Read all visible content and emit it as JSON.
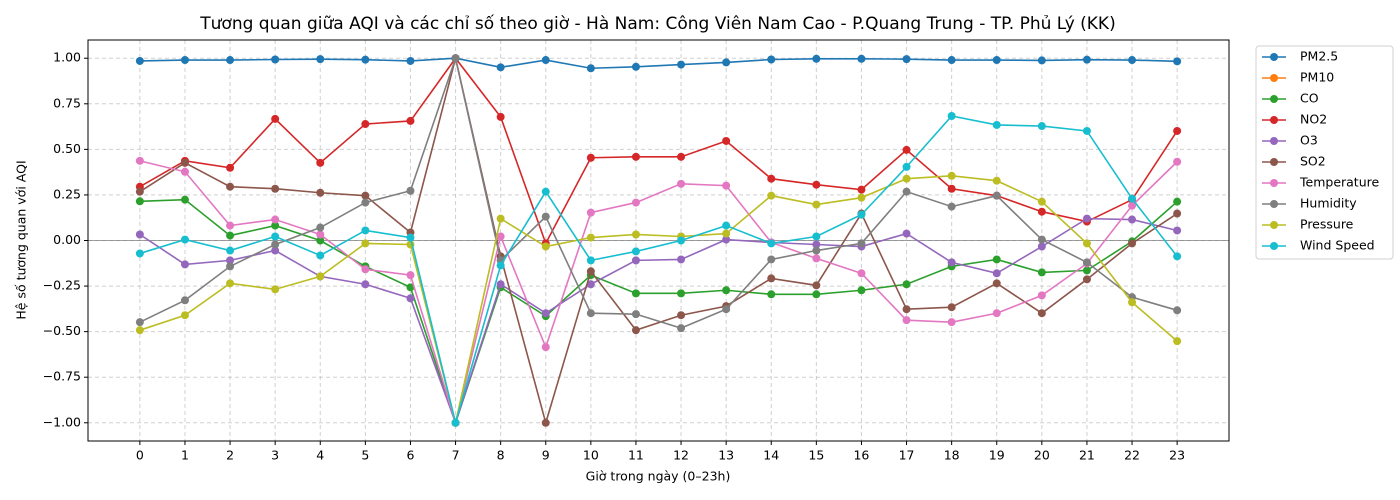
{
  "chart_data": {
    "type": "line",
    "title": "Tương quan giữa AQI và các chỉ số theo giờ - Hà Nam: Công Viên Nam Cao - P.Quang Trung - TP. Phủ Lý (KK)",
    "xlabel": "Giờ trong ngày (0–23h)",
    "ylabel": "Hệ số tương quan với AQI",
    "x": [
      0,
      1,
      2,
      3,
      4,
      5,
      6,
      7,
      8,
      9,
      10,
      11,
      12,
      13,
      14,
      15,
      16,
      17,
      18,
      19,
      20,
      21,
      22,
      23
    ],
    "xlim": [
      -1.15,
      24.15
    ],
    "xticks": [
      0,
      1,
      2,
      3,
      4,
      5,
      6,
      7,
      8,
      9,
      10,
      11,
      12,
      13,
      14,
      15,
      16,
      17,
      18,
      19,
      20,
      21,
      22,
      23
    ],
    "ylim": [
      -1.1,
      1.1
    ],
    "yticks": [
      {
        "value": -1,
        "label": "−1.00"
      },
      {
        "value": -0.75,
        "label": "−0.75"
      },
      {
        "value": -0.5,
        "label": "−0.50"
      },
      {
        "value": -0.25,
        "label": "−0.25"
      },
      {
        "value": 0,
        "label": "0.00"
      },
      {
        "value": 0.25,
        "label": "0.25"
      },
      {
        "value": 0.5,
        "label": "0.50"
      },
      {
        "value": 0.75,
        "label": "0.75"
      },
      {
        "value": 1,
        "label": "1.00"
      }
    ],
    "grid": true,
    "legend": "outside-upper-right",
    "series": [
      {
        "name": "PM2.5",
        "color": "#1f77b4",
        "values": [
          0.985,
          0.99,
          0.99,
          0.993,
          0.995,
          0.992,
          0.985,
          1.0,
          0.95,
          0.99,
          0.945,
          0.953,
          0.965,
          0.977,
          0.993,
          0.997,
          0.997,
          0.995,
          0.99,
          0.99,
          0.988,
          0.992,
          0.99,
          0.983
        ]
      },
      {
        "name": "PM10",
        "color": "#ff7f0e",
        "values": [
          null,
          null,
          null,
          null,
          null,
          null,
          null,
          null,
          null,
          null,
          null,
          null,
          null,
          null,
          null,
          null,
          null,
          null,
          null,
          null,
          null,
          null,
          null,
          null
        ]
      },
      {
        "name": "CO",
        "color": "#2ca02c",
        "values": [
          0.215,
          0.224,
          0.027,
          0.082,
          0,
          -0.142,
          -0.257,
          -1.0,
          -0.257,
          -0.415,
          -0.19,
          -0.29,
          -0.29,
          -0.273,
          -0.295,
          -0.295,
          -0.273,
          -0.24,
          -0.142,
          -0.104,
          -0.175,
          -0.164,
          -0.005,
          0.213
        ]
      },
      {
        "name": "NO2",
        "color": "#d62728",
        "values": [
          0.295,
          0.437,
          0.399,
          0.667,
          0.426,
          0.639,
          0.656,
          1.0,
          0.678,
          -0.016,
          0.454,
          0.459,
          0.459,
          0.546,
          0.339,
          0.306,
          0.279,
          0.497,
          0.284,
          0.246,
          0.158,
          0.104,
          0.224,
          0.601
        ]
      },
      {
        "name": "O3",
        "color": "#9467bd",
        "values": [
          0.033,
          -0.131,
          -0.109,
          -0.055,
          -0.197,
          -0.24,
          -0.317,
          -1.0,
          -0.24,
          -0.399,
          -0.24,
          -0.109,
          -0.104,
          0.005,
          -0.011,
          -0.022,
          -0.033,
          0.038,
          -0.12,
          -0.18,
          -0.033,
          0.12,
          0.115,
          0.055
        ]
      },
      {
        "name": "SO2",
        "color": "#8c564b",
        "values": [
          0.268,
          0.426,
          0.295,
          0.284,
          0.262,
          0.246,
          0.044,
          1.0,
          -0.087,
          -1.0,
          -0.169,
          -0.492,
          -0.41,
          -0.36,
          -0.208,
          -0.246,
          0.148,
          -0.377,
          -0.366,
          -0.235,
          -0.399,
          -0.213,
          -0.016,
          0.148
        ]
      },
      {
        "name": "Temperature",
        "color": "#e377c2",
        "values": [
          0.437,
          0.377,
          0.082,
          0.115,
          0.033,
          -0.158,
          -0.19,
          -1.0,
          0.022,
          -0.585,
          0.153,
          0.208,
          0.311,
          0.301,
          -0.011,
          -0.098,
          -0.18,
          -0.437,
          -0.448,
          -0.399,
          -0.301,
          -0.126,
          0.191,
          0.432
        ]
      },
      {
        "name": "Humidity",
        "color": "#7f7f7f",
        "values": [
          -0.448,
          -0.328,
          -0.142,
          -0.022,
          0.071,
          0.208,
          0.273,
          1.0,
          -0.109,
          0.131,
          -0.399,
          -0.404,
          -0.481,
          -0.377,
          -0.104,
          -0.055,
          -0.016,
          0.268,
          0.186,
          0.246,
          0.005,
          -0.12,
          -0.311,
          -0.383
        ]
      },
      {
        "name": "Pressure",
        "color": "#bcbd22",
        "values": [
          -0.492,
          -0.41,
          -0.235,
          -0.268,
          -0.197,
          -0.016,
          -0.022,
          -1.0,
          0.12,
          -0.033,
          0.016,
          0.033,
          0.022,
          0.038,
          0.246,
          0.197,
          0.235,
          0.339,
          0.355,
          0.328,
          0.213,
          -0.016,
          -0.339,
          -0.552
        ]
      },
      {
        "name": "Wind Speed",
        "color": "#17becf",
        "values": [
          -0.071,
          0.005,
          -0.055,
          0.022,
          -0.082,
          0.055,
          0.016,
          -1.0,
          -0.137,
          0.268,
          -0.109,
          -0.06,
          0,
          0.082,
          -0.016,
          0.022,
          0.142,
          0.404,
          0.683,
          0.634,
          0.628,
          0.601,
          0.23,
          -0.087
        ]
      }
    ]
  }
}
